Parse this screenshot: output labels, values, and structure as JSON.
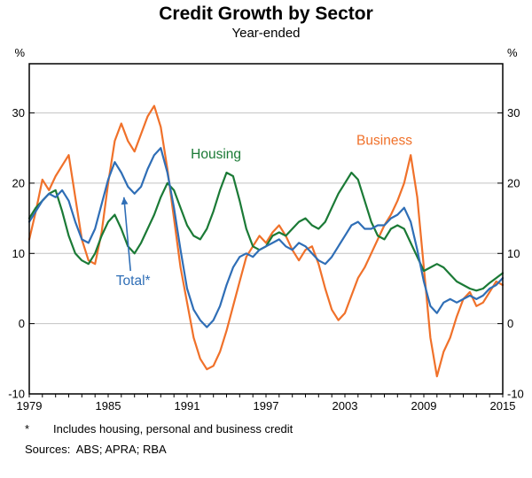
{
  "page": {
    "title": "Credit Growth by Sector",
    "subtitle": "Year-ended",
    "footnote_marker": "*",
    "footnote_text": "Includes housing, personal and business credit",
    "sources": "Sources:  ABS; APRA; RBA"
  },
  "chart_data": {
    "type": "line",
    "title": "Credit Growth by Sector",
    "subtitle": "Year-ended",
    "unit_left": "%",
    "unit_right": "%",
    "ylim": [
      -10,
      37
    ],
    "yticks": [
      -10,
      0,
      10,
      20,
      30
    ],
    "gridlines": [
      0,
      10,
      20,
      30
    ],
    "xlim": [
      1979,
      2015
    ],
    "xtick_labels": [
      1979,
      1985,
      1991,
      1997,
      2003,
      2009,
      2015
    ],
    "xtick_minor_step": 1,
    "x_start": 1979,
    "x_step": 0.5,
    "series": [
      {
        "name": "Business",
        "color": "#f0712a",
        "values": [
          12,
          16,
          20.5,
          19,
          21,
          22.5,
          24,
          18,
          12,
          9,
          8.5,
          13,
          20,
          26,
          28.5,
          26,
          24.5,
          27,
          29.5,
          31,
          28,
          22,
          15,
          8,
          3,
          -2,
          -5,
          -6.5,
          -6,
          -4,
          -1,
          2.5,
          6,
          9.5,
          11,
          12.5,
          11.5,
          13,
          14,
          12.5,
          10.5,
          9,
          10.5,
          11,
          8.5,
          5,
          2,
          0.5,
          1.5,
          4,
          6.5,
          8,
          10,
          12,
          14,
          15.5,
          17.5,
          20,
          24,
          18,
          8,
          -2,
          -7.5,
          -4,
          -2,
          1,
          3.5,
          4.5,
          2.5,
          3,
          4.5,
          6,
          5.5
        ]
      },
      {
        "name": "Housing",
        "color": "#1b7a36",
        "values": [
          15,
          16.5,
          17.5,
          18.5,
          19,
          16,
          12.5,
          10,
          9,
          8.5,
          10,
          12.5,
          14.5,
          15.5,
          13.5,
          11,
          10,
          11.5,
          13.5,
          15.5,
          18,
          20,
          19,
          16.5,
          14,
          12.5,
          12,
          13.5,
          16,
          19,
          21.5,
          21,
          17.5,
          13.5,
          11,
          10.5,
          11,
          12.5,
          13,
          12.5,
          13.5,
          14.5,
          15,
          14,
          13.5,
          14.5,
          16.5,
          18.5,
          20,
          21.5,
          20.5,
          17.5,
          14.5,
          12.5,
          12,
          13.5,
          14,
          13.5,
          11.5,
          9.5,
          7.5,
          8,
          8.5,
          8,
          7,
          6,
          5.5,
          5,
          4.7,
          5,
          5.8,
          6.5,
          7.2
        ]
      },
      {
        "name": "Total*",
        "color": "#2f6eb6",
        "values": [
          14.5,
          16,
          17.5,
          18.5,
          18,
          19,
          17.5,
          14.5,
          12,
          11.5,
          13.5,
          17,
          20.5,
          23,
          21.5,
          19.5,
          18.5,
          19.5,
          22,
          24,
          25,
          21.5,
          16.5,
          10.5,
          5,
          2,
          0.5,
          -0.5,
          0.5,
          2.5,
          5.5,
          8,
          9.5,
          10,
          9.5,
          10.5,
          11,
          11.5,
          12,
          11,
          10.5,
          11.5,
          11,
          10,
          9,
          8.5,
          9.5,
          11,
          12.5,
          14,
          14.5,
          13.5,
          13.5,
          14,
          14,
          15,
          15.5,
          16.5,
          14.5,
          10.5,
          6,
          2.5,
          1.5,
          3,
          3.5,
          3,
          3.5,
          4,
          3.5,
          4,
          5,
          5.5,
          6.5
        ]
      }
    ],
    "annotations": [
      {
        "text": "Housing",
        "x": 1993.2,
        "y": 23.5,
        "color": "#1b7a36"
      },
      {
        "text": "Business",
        "x": 2006.0,
        "y": 25.5,
        "color": "#f0712a"
      },
      {
        "text": "Total*",
        "x": 1986.9,
        "y": 5.5,
        "color": "#2f6eb6",
        "arrow": {
          "from": [
            1986.7,
            7.5
          ],
          "to": [
            1986.2,
            18.0
          ]
        }
      }
    ]
  }
}
